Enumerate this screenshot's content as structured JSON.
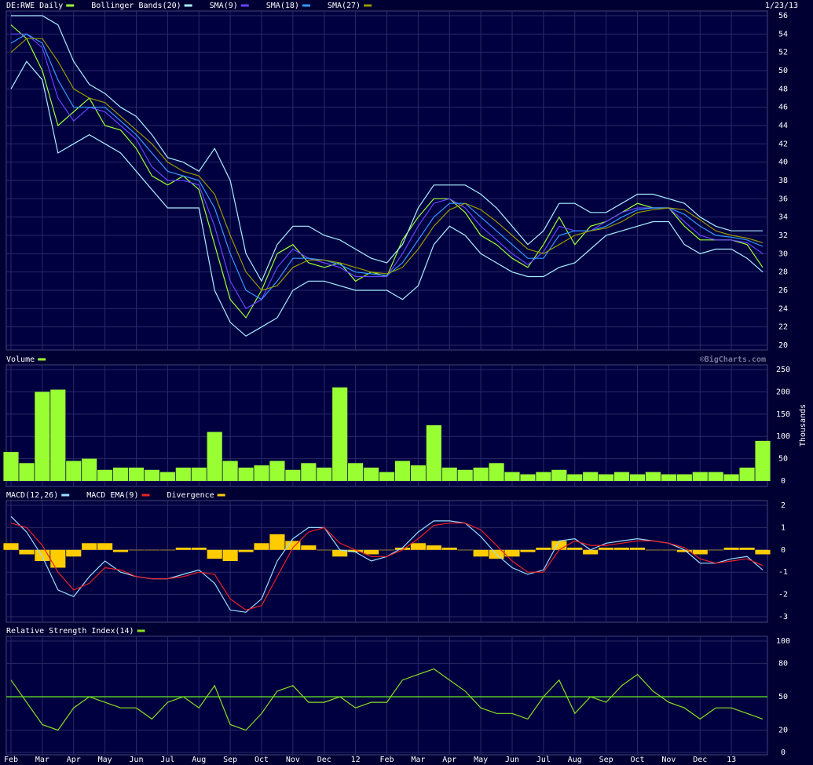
{
  "chart_data": [
    {
      "type": "line",
      "date": "1/23/13",
      "ylim": [
        20,
        56
      ],
      "yticks": [
        20,
        22,
        24,
        26,
        28,
        30,
        32,
        34,
        36,
        38,
        40,
        42,
        44,
        46,
        48,
        50,
        52,
        54,
        56
      ],
      "grid": true,
      "series": [
        {
          "name": "DE:RWE Daily",
          "color": "#99ff33",
          "type": "line",
          "values": [
            55,
            53.5,
            50,
            44,
            45.5,
            47,
            44,
            43.5,
            41.5,
            38.5,
            37.5,
            38.5,
            37,
            31,
            25,
            23,
            26,
            30,
            31,
            29,
            28.5,
            29,
            27,
            28,
            27.5,
            31.5,
            34,
            36,
            36,
            34.5,
            32,
            31,
            29.5,
            28.5,
            31,
            34,
            31,
            33,
            33.5,
            34.5,
            35.5,
            35,
            35,
            33,
            31.5,
            31.5,
            31.5,
            31,
            28.5
          ]
        },
        {
          "name": "Bollinger Bands(20)",
          "color": "#aaeeff",
          "type": "band",
          "upper": [
            56,
            56,
            56,
            55,
            51,
            48.5,
            47.5,
            46,
            45,
            43,
            40.5,
            40,
            39,
            41.5,
            38,
            30,
            27,
            31,
            33,
            33,
            32,
            31.5,
            30.5,
            29.5,
            29,
            31,
            35,
            37.5,
            37.5,
            37.5,
            36.5,
            35,
            33,
            31,
            32.5,
            35.5,
            35.5,
            34.5,
            34.5,
            35.5,
            36.5,
            36.5,
            36,
            35.5,
            34,
            33,
            32.5,
            32.5,
            32.5
          ],
          "lower": [
            48,
            51,
            49,
            41,
            42,
            43,
            42,
            41,
            39,
            37,
            35,
            35,
            35,
            26,
            22.5,
            21,
            22,
            23,
            26,
            27,
            27,
            26.5,
            26,
            26,
            26,
            25,
            26.5,
            31,
            33,
            32,
            30,
            29,
            28,
            27.5,
            27.5,
            28.5,
            29,
            30.5,
            32,
            32.5,
            33,
            33.5,
            33.5,
            31,
            30,
            30.5,
            30.5,
            29.5,
            28
          ]
        },
        {
          "name": "SMA(9)",
          "color": "#6644ff",
          "type": "line",
          "values": [
            54,
            54,
            52.5,
            47,
            44.5,
            46,
            45.5,
            44,
            42.5,
            39.5,
            38,
            38,
            37.5,
            33,
            27,
            24,
            25,
            28.5,
            30.5,
            29.5,
            29,
            28.5,
            27.5,
            27.5,
            27.5,
            30,
            33,
            35.5,
            36,
            35,
            33,
            31.5,
            30,
            28.8,
            30.2,
            33,
            32.5,
            32.5,
            33.5,
            34.5,
            35,
            35,
            35,
            33.5,
            32,
            31.5,
            31.5,
            31.2,
            30
          ]
        },
        {
          "name": "SMA(18)",
          "color": "#3399ff",
          "type": "line",
          "values": [
            53,
            54,
            53,
            49,
            46,
            46,
            46,
            44.5,
            43,
            41,
            39,
            38.5,
            38,
            35,
            30,
            26,
            25,
            27,
            29.5,
            29.5,
            29.3,
            28.8,
            28,
            27.8,
            27.6,
            29,
            31.5,
            34,
            35.5,
            35.5,
            34,
            32.5,
            31,
            29.5,
            29.5,
            32,
            32.5,
            32.5,
            33,
            34,
            34.8,
            35,
            35,
            34.3,
            33,
            32,
            31.8,
            31.5,
            30.8
          ]
        },
        {
          "name": "SMA(27)",
          "color": "#999900",
          "type": "line",
          "values": [
            52,
            53.5,
            53.5,
            51,
            48,
            47,
            46.5,
            45,
            43.5,
            42,
            40,
            39,
            38.5,
            36.5,
            32,
            28,
            26,
            26.5,
            28.5,
            29.3,
            29.3,
            29,
            28.5,
            28,
            27.8,
            28.5,
            30.5,
            33,
            34.8,
            35.5,
            34.8,
            33.5,
            32,
            30.5,
            30,
            31,
            32,
            32.5,
            32.8,
            33.5,
            34.5,
            34.8,
            35,
            34.8,
            33.7,
            32.5,
            32,
            31.7,
            31.2
          ]
        }
      ]
    },
    {
      "type": "bar",
      "ylim": [
        0,
        250
      ],
      "yticks": [
        0,
        50,
        100,
        150,
        200,
        250
      ],
      "grid": true,
      "y_label": "Thousands",
      "credit": "©BigCharts.com",
      "series": [
        {
          "name": "Volume",
          "color": "#99ff33",
          "type": "bar",
          "values": [
            65,
            40,
            200,
            205,
            45,
            50,
            25,
            30,
            30,
            25,
            20,
            30,
            30,
            110,
            45,
            30,
            35,
            45,
            25,
            40,
            30,
            210,
            40,
            30,
            20,
            45,
            35,
            125,
            30,
            25,
            30,
            40,
            20,
            15,
            20,
            25,
            15,
            20,
            15,
            20,
            15,
            20,
            15,
            15,
            20,
            20,
            15,
            30,
            90
          ]
        }
      ]
    },
    {
      "type": "line",
      "ylim": [
        -3,
        2
      ],
      "yticks": [
        -3,
        -2,
        -1,
        0,
        1,
        2
      ],
      "grid": true,
      "series": [
        {
          "name": "MACD(12,26)",
          "color": "#99ddff",
          "type": "line",
          "values": [
            1.5,
            0.8,
            -0.3,
            -1.8,
            -2.1,
            -1.2,
            -0.5,
            -1,
            -1.2,
            -1.3,
            -1.3,
            -1.1,
            -0.9,
            -1.5,
            -2.7,
            -2.8,
            -2.2,
            -0.5,
            0.5,
            1,
            1,
            0,
            -0.1,
            -0.5,
            -0.3,
            0.1,
            0.8,
            1.3,
            1.3,
            1.2,
            0.6,
            -0.2,
            -0.8,
            -1.1,
            -0.9,
            0.4,
            0.5,
            0,
            0.3,
            0.4,
            0.5,
            0.4,
            0.3,
            0,
            -0.6,
            -0.6,
            -0.4,
            -0.3,
            -0.9
          ]
        },
        {
          "name": "MACD EMA(9)",
          "color": "#ee2222",
          "type": "line",
          "values": [
            1.2,
            1.0,
            0.2,
            -1.0,
            -1.8,
            -1.5,
            -0.8,
            -0.9,
            -1.2,
            -1.3,
            -1.3,
            -1.2,
            -1.0,
            -1.1,
            -2.2,
            -2.7,
            -2.5,
            -1.2,
            0.1,
            0.8,
            1.0,
            0.3,
            0,
            -0.3,
            -0.3,
            0,
            0.5,
            1.1,
            1.2,
            1.2,
            0.9,
            0.2,
            -0.5,
            -1.0,
            -1.0,
            0,
            0.4,
            0.2,
            0.2,
            0.3,
            0.4,
            0.4,
            0.3,
            0.1,
            -0.4,
            -0.6,
            -0.5,
            -0.4,
            -0.7
          ]
        },
        {
          "name": "Divergence",
          "color": "#ffcc00",
          "type": "bar",
          "values": [
            0.3,
            -0.2,
            -0.5,
            -0.8,
            -0.3,
            0.3,
            0.3,
            -0.1,
            0,
            0,
            0,
            0.1,
            0.1,
            -0.4,
            -0.5,
            -0.1,
            0.3,
            0.7,
            0.4,
            0.2,
            0,
            -0.3,
            -0.1,
            -0.2,
            0,
            0.1,
            0.3,
            0.2,
            0.1,
            0,
            -0.3,
            -0.4,
            -0.3,
            -0.1,
            0.1,
            0.4,
            0.1,
            -0.2,
            0.1,
            0.1,
            0.1,
            0,
            0,
            -0.1,
            -0.2,
            0,
            0.1,
            0.1,
            -0.2
          ]
        }
      ]
    },
    {
      "type": "line",
      "ylim": [
        0,
        100
      ],
      "yticks": [
        0,
        20,
        50,
        80,
        100
      ],
      "grid": true,
      "reference_line": 50,
      "categories": [
        "Feb",
        null,
        "Mar",
        null,
        "Apr",
        null,
        "May",
        null,
        "Jun",
        null,
        "Jul",
        null,
        "Aug",
        null,
        "Sep",
        null,
        "Oct",
        null,
        "Nov",
        null,
        "Dec",
        null,
        "12",
        null,
        "Feb",
        null,
        "Mar",
        null,
        "Apr",
        null,
        "May",
        null,
        "Jun",
        null,
        "Jul",
        null,
        "Aug",
        null,
        "Sep",
        null,
        "Oct",
        null,
        "Nov",
        null,
        "Dec",
        null,
        "13",
        null,
        null
      ],
      "series": [
        {
          "name": "Relative Strength Index(14)",
          "color": "#88dd22",
          "type": "line",
          "values": [
            65,
            45,
            25,
            20,
            40,
            50,
            45,
            40,
            40,
            30,
            45,
            50,
            40,
            60,
            25,
            20,
            35,
            55,
            60,
            45,
            45,
            50,
            40,
            45,
            45,
            65,
            70,
            75,
            65,
            55,
            40,
            35,
            35,
            30,
            50,
            65,
            35,
            50,
            45,
            60,
            70,
            55,
            45,
            40,
            30,
            40,
            40,
            35,
            30
          ]
        }
      ]
    }
  ]
}
